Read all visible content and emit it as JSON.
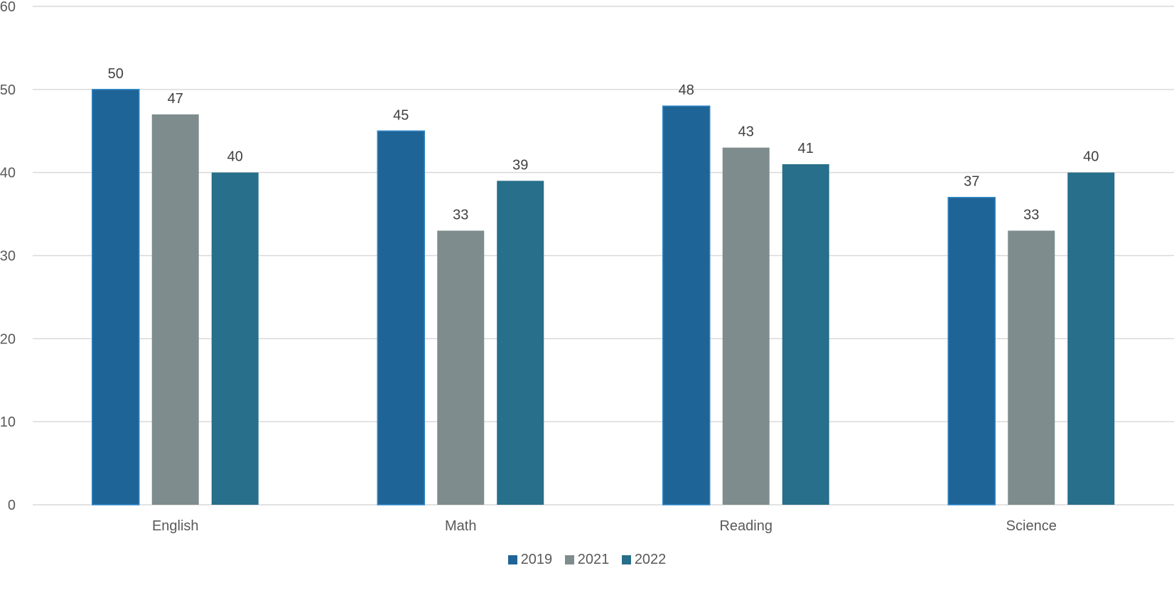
{
  "chart_data": {
    "type": "bar",
    "title": "",
    "xlabel": "",
    "ylabel": "",
    "categories": [
      "English",
      "Math",
      "Reading",
      "Science"
    ],
    "series": [
      {
        "name": "2019",
        "values": [
          50,
          45,
          48,
          37
        ],
        "color": "#1f6496"
      },
      {
        "name": "2021",
        "values": [
          47,
          33,
          43,
          33
        ],
        "color": "#7f8c8d"
      },
      {
        "name": "2022",
        "values": [
          40,
          39,
          41,
          40
        ],
        "color": "#276f8a"
      }
    ],
    "ylim": [
      0,
      60
    ],
    "yticks": [
      0,
      10,
      20,
      30,
      40,
      50,
      60
    ],
    "grid": true,
    "data_labels": true,
    "legend_position": "bottom"
  }
}
